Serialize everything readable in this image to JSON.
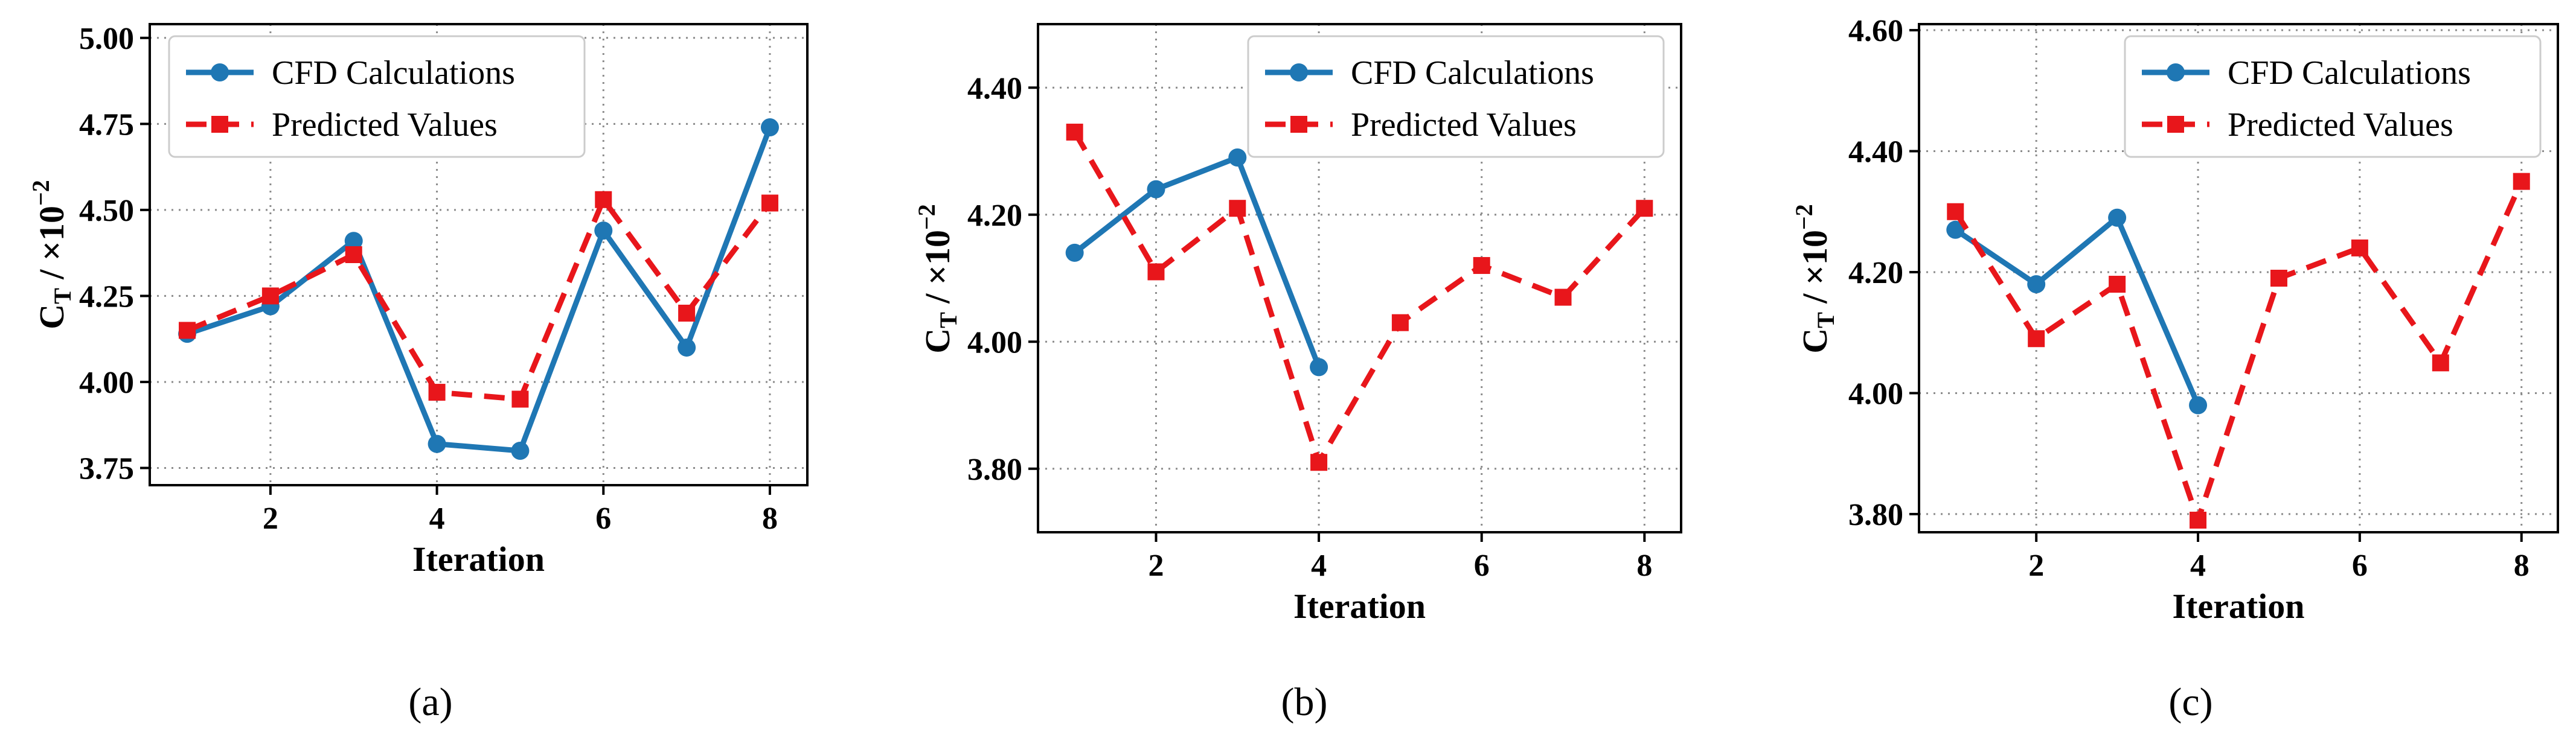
{
  "colors": {
    "cfd": "#1f77b4",
    "predicted": "#e8161b"
  },
  "chart_data": [
    {
      "type": "line",
      "panel": "a",
      "caption": "(a)",
      "xlabel": "Iteration",
      "ylabel_main": "C",
      "ylabel_sub": "T",
      "ylabel_unit": " / ×10",
      "ylabel_exp": "−2",
      "xlim": [
        0.55,
        8.45
      ],
      "ylim": [
        3.7,
        5.04
      ],
      "xticks": [
        2,
        4,
        6,
        8
      ],
      "xtick_labels": [
        "2",
        "4",
        "6",
        "8"
      ],
      "yticks": [
        3.75,
        4.0,
        4.25,
        4.5,
        4.75,
        5.0
      ],
      "ytick_labels": [
        "3.75",
        "4.00",
        "4.25",
        "4.50",
        "4.75",
        "5.00"
      ],
      "grid": true,
      "legend": "upper-left",
      "series": [
        {
          "name": "CFD Calculations",
          "x": [
            1,
            2,
            3,
            4,
            5,
            6,
            7,
            8
          ],
          "values": [
            4.14,
            4.22,
            4.41,
            3.82,
            3.8,
            4.44,
            4.1,
            4.74
          ]
        },
        {
          "name": "Predicted Values",
          "x": [
            1,
            2,
            3,
            4,
            5,
            6,
            7,
            8
          ],
          "values": [
            4.15,
            4.25,
            4.37,
            3.97,
            3.95,
            4.53,
            4.2,
            4.52
          ]
        }
      ]
    },
    {
      "type": "line",
      "panel": "b",
      "caption": "(b)",
      "xlabel": "Iteration",
      "ylabel_main": "C",
      "ylabel_sub": "T",
      "ylabel_unit": " / ×10",
      "ylabel_exp": "−2",
      "xlim": [
        0.55,
        8.45
      ],
      "ylim": [
        3.7,
        4.5
      ],
      "xticks": [
        2,
        4,
        6,
        8
      ],
      "xtick_labels": [
        "2",
        "4",
        "6",
        "8"
      ],
      "yticks": [
        3.8,
        4.0,
        4.2,
        4.4
      ],
      "ytick_labels": [
        "3.80",
        "4.00",
        "4.20",
        "4.40"
      ],
      "grid": true,
      "legend": "upper-right",
      "series": [
        {
          "name": "CFD Calculations",
          "x": [
            1,
            2,
            3,
            4
          ],
          "values": [
            4.14,
            4.24,
            4.29,
            3.96
          ]
        },
        {
          "name": "Predicted Values",
          "x": [
            1,
            2,
            3,
            4,
            5,
            6,
            7,
            8
          ],
          "values": [
            4.33,
            4.11,
            4.21,
            3.81,
            4.03,
            4.12,
            4.07,
            4.21
          ]
        }
      ]
    },
    {
      "type": "line",
      "panel": "c",
      "caption": "(c)",
      "xlabel": "Iteration",
      "ylabel_main": "C",
      "ylabel_sub": "T",
      "ylabel_unit": " / ×10",
      "ylabel_exp": "−2",
      "xlim": [
        0.55,
        8.45
      ],
      "ylim": [
        3.77,
        4.61
      ],
      "xticks": [
        2,
        4,
        6,
        8
      ],
      "xtick_labels": [
        "2",
        "4",
        "6",
        "8"
      ],
      "yticks": [
        3.8,
        4.0,
        4.2,
        4.4,
        4.6
      ],
      "ytick_labels": [
        "3.80",
        "4.00",
        "4.20",
        "4.40",
        "4.60"
      ],
      "grid": true,
      "legend": "upper-right",
      "series": [
        {
          "name": "CFD Calculations",
          "x": [
            1,
            2,
            3,
            4
          ],
          "values": [
            4.27,
            4.18,
            4.29,
            3.98
          ]
        },
        {
          "name": "Predicted Values",
          "x": [
            1,
            2,
            3,
            4,
            5,
            6,
            7,
            8
          ],
          "values": [
            4.3,
            4.09,
            4.18,
            3.79,
            4.19,
            4.24,
            4.05,
            4.35
          ]
        }
      ]
    }
  ]
}
